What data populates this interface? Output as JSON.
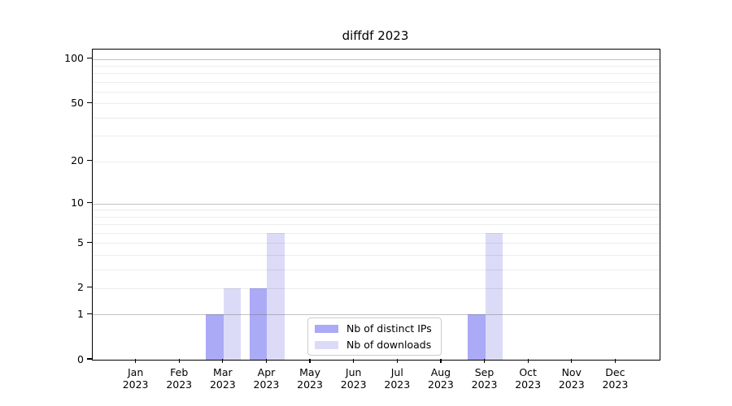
{
  "title": "diffdf 2023",
  "chart_data": {
    "type": "bar",
    "title": "diffdf 2023",
    "xlabel": "",
    "ylabel": "",
    "categories": [
      "Jan 2023",
      "Feb 2023",
      "Mar 2023",
      "Apr 2023",
      "May 2023",
      "Jun 2023",
      "Jul 2023",
      "Aug 2023",
      "Sep 2023",
      "Oct 2023",
      "Nov 2023",
      "Dec 2023"
    ],
    "series": [
      {
        "name": "Nb of distinct IPs",
        "color": "#aaaaf6",
        "values": [
          0,
          0,
          1,
          2,
          0,
          0,
          0,
          0,
          1,
          0,
          0,
          0
        ]
      },
      {
        "name": "Nb of downloads",
        "color": "#dbdbf8",
        "values": [
          0,
          0,
          2,
          6,
          0,
          0,
          0,
          0,
          6,
          0,
          0,
          0
        ]
      }
    ],
    "yscale": "log1p",
    "ylim": [
      0,
      115.7
    ],
    "yticks": [
      0,
      1,
      2,
      5,
      10,
      20,
      50,
      100
    ],
    "gridlines": {
      "major": [
        1,
        10,
        100
      ],
      "minor": [
        2,
        3,
        4,
        5,
        6,
        7,
        8,
        9,
        20,
        30,
        40,
        50,
        60,
        70,
        80,
        90
      ]
    },
    "legend_position": "lower-center-inside",
    "grid": true
  }
}
